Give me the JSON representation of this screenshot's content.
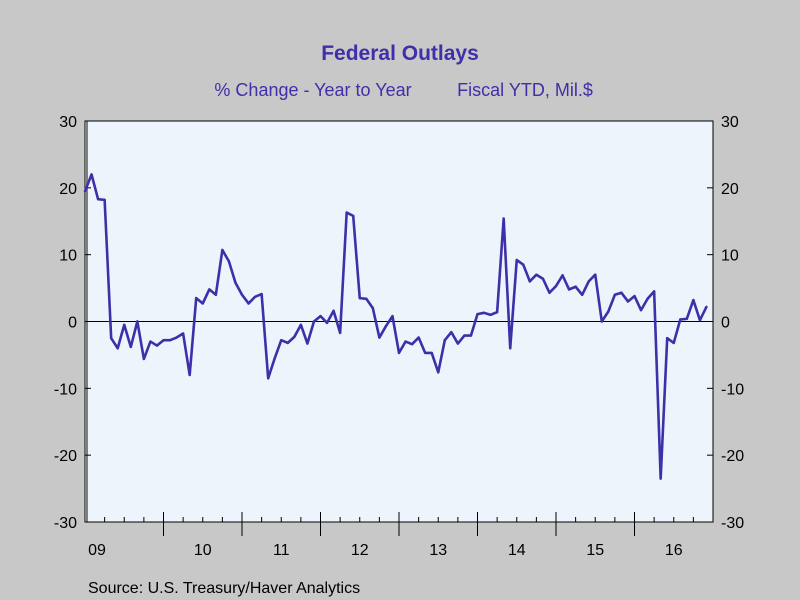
{
  "chart_data": {
    "type": "line",
    "title": "Federal Outlays",
    "subtitle_left": "% Change - Year to Year",
    "subtitle_right": "Fiscal YTD, Mil.$",
    "source": "Source:  U.S. Treasury/Haver Analytics",
    "ylim": [
      -30,
      30
    ],
    "yticks": [
      -30,
      -20,
      -10,
      0,
      10,
      20,
      30
    ],
    "ytick_labels": [
      "-30",
      "-20",
      "-10",
      "0",
      "10",
      "20",
      "30"
    ],
    "x_start_year": 2009,
    "x_end_year": 2017,
    "year_labels": [
      {
        "year": 2009,
        "label": "09"
      },
      {
        "year": 2010,
        "label": "10"
      },
      {
        "year": 2011,
        "label": "11"
      },
      {
        "year": 2012,
        "label": "12"
      },
      {
        "year": 2013,
        "label": "13"
      },
      {
        "year": 2014,
        "label": "14"
      },
      {
        "year": 2015,
        "label": "15"
      },
      {
        "year": 2016,
        "label": "16"
      }
    ],
    "grid": false,
    "zero_line": true,
    "colors": {
      "line": "#3f2fa8",
      "plot_bg": "#eef4fc",
      "page_bg": "#c8c8c8",
      "title": "#3f2fa8"
    },
    "series": [
      {
        "values": [
          19.5,
          22.0,
          18.3,
          18.2,
          -2.5,
          -4.0,
          -0.5,
          -3.8,
          0.0,
          -5.6,
          -3.0,
          -3.6,
          -2.8,
          -2.8,
          -2.4,
          -1.8,
          -8.0,
          3.5,
          2.7,
          4.8,
          4.0,
          10.7,
          9.0,
          5.8,
          4.0,
          2.7,
          3.7,
          4.1,
          -8.5,
          -5.5,
          -2.8,
          -3.2,
          -2.3,
          -0.5,
          -3.3,
          0.0,
          0.8,
          -0.2,
          1.6,
          -1.7,
          16.3,
          15.8,
          3.5,
          3.4,
          2.0,
          -2.4,
          -0.7,
          0.8,
          -4.7,
          -3.0,
          -3.4,
          -2.4,
          -4.7,
          -4.7,
          -7.6,
          -2.8,
          -1.6,
          -3.3,
          -2.1,
          -2.1,
          1.1,
          1.3,
          1.0,
          1.4,
          15.4,
          -4.0,
          9.2,
          8.5,
          6.0,
          7.0,
          6.4,
          4.3,
          5.3,
          6.9,
          4.8,
          5.2,
          4.0,
          6.0,
          7.0,
          0.0,
          1.5,
          4.0,
          4.3,
          3.0,
          3.8,
          1.7,
          3.4,
          4.5,
          -23.5,
          -2.5,
          -3.2,
          0.3,
          0.4,
          3.2,
          0.2,
          2.2
        ]
      }
    ]
  }
}
